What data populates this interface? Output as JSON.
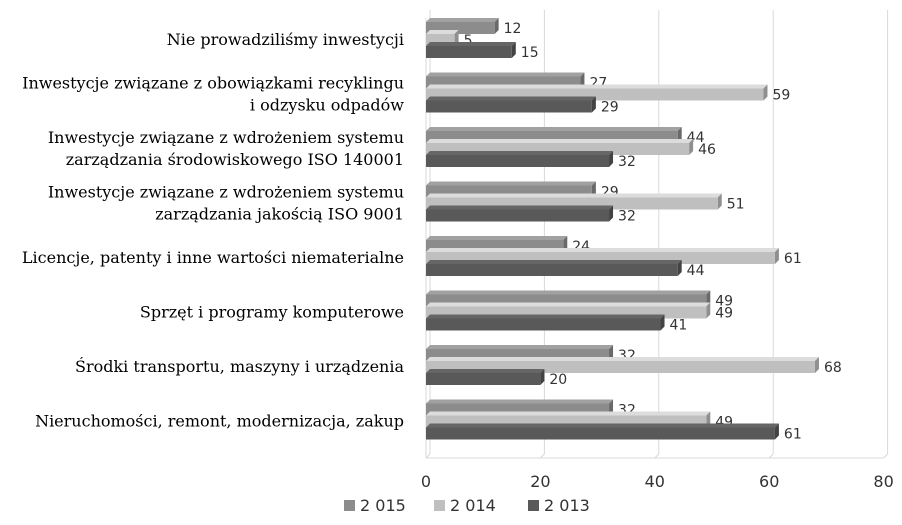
{
  "chart_data": {
    "type": "bar",
    "orientation": "horizontal",
    "style": "3d-clustered",
    "categories": [
      [
        "Nie prowadziliśmy inwestycji"
      ],
      [
        "Inwestycje związane z obowiązkami recyklingu",
        "i odzysku odpadów"
      ],
      [
        "Inwestycje związane z wdrożeniem systemu",
        "zarządzania środowiskowego ISO 140001"
      ],
      [
        "Inwestycje związane z wdrożeniem systemu",
        "zarządzania jakością ISO 9001"
      ],
      [
        "Licencje, patenty i inne wartości niematerialne"
      ],
      [
        "Sprzęt i programy komputerowe"
      ],
      [
        "Środki transportu, maszyny i urządzenia"
      ],
      [
        "Nieruchomości, remont, modernizacja, zakup"
      ]
    ],
    "series": [
      {
        "name": "2 015",
        "color": "#8c8c8c",
        "values": [
          12,
          27,
          44,
          29,
          24,
          49,
          32,
          32
        ]
      },
      {
        "name": "2 014",
        "color": "#bfbfbf",
        "values": [
          5,
          59,
          46,
          51,
          61,
          49,
          68,
          49
        ]
      },
      {
        "name": "2 013",
        "color": "#595959",
        "values": [
          15,
          29,
          32,
          32,
          44,
          41,
          20,
          61
        ]
      }
    ],
    "xlim": [
      0,
      80
    ],
    "xticks": [
      "0",
      "20",
      "40",
      "60",
      "80"
    ],
    "legend_position": "bottom",
    "grid": true
  }
}
